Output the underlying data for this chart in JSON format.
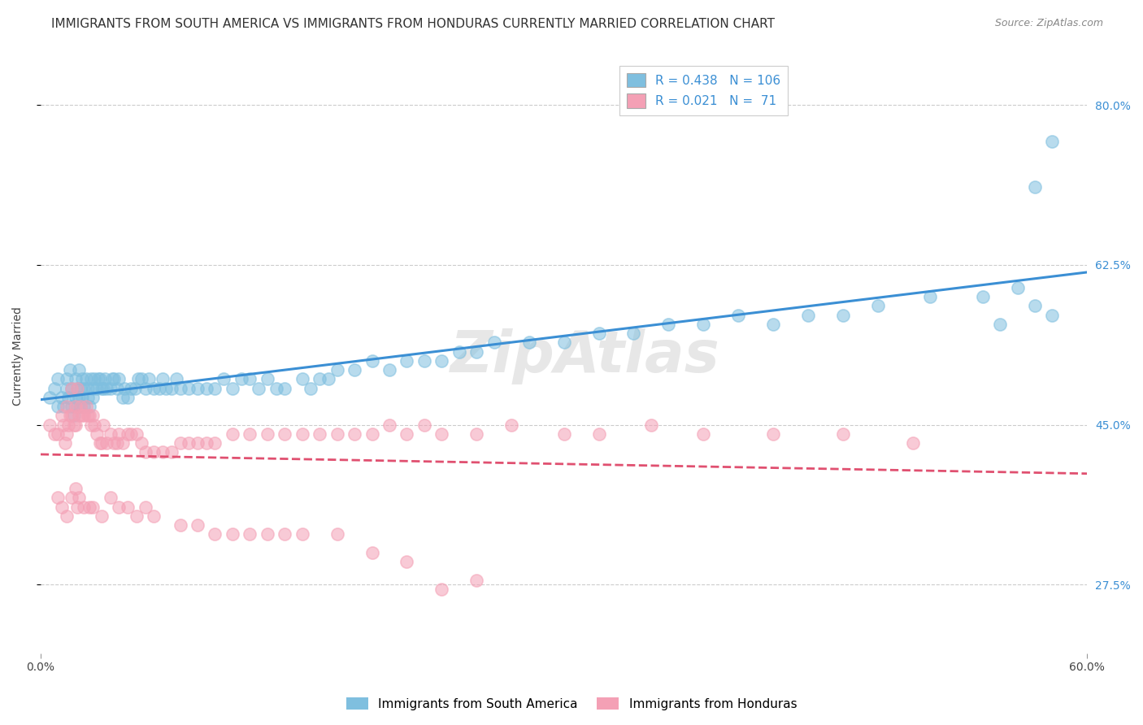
{
  "title": "IMMIGRANTS FROM SOUTH AMERICA VS IMMIGRANTS FROM HONDURAS CURRENTLY MARRIED CORRELATION CHART",
  "source": "Source: ZipAtlas.com",
  "ylabel": "Currently Married",
  "xlim": [
    0.0,
    0.6
  ],
  "ylim": [
    0.2,
    0.85
  ],
  "ytick_labels": [
    "27.5%",
    "45.0%",
    "62.5%",
    "80.0%"
  ],
  "ytick_values": [
    0.275,
    0.45,
    0.625,
    0.8
  ],
  "xtick_labels": [
    "0.0%",
    "60.0%"
  ],
  "r_south_america": 0.438,
  "n_south_america": 106,
  "r_honduras": 0.021,
  "n_honduras": 71,
  "color_south_america": "#7fbfdf",
  "color_honduras": "#f4a0b5",
  "line_color_south_america": "#3b8fd4",
  "line_color_honduras": "#e05070",
  "background_color": "#ffffff",
  "grid_color": "#cccccc",
  "watermark": "ZipAtlas",
  "legend_label_sa": "Immigrants from South America",
  "legend_label_hn": "Immigrants from Honduras",
  "title_fontsize": 11,
  "axis_label_fontsize": 10,
  "tick_fontsize": 10,
  "legend_fontsize": 11,
  "scatter_size": 120,
  "sa_x": [
    0.005,
    0.008,
    0.01,
    0.01,
    0.012,
    0.013,
    0.015,
    0.015,
    0.016,
    0.017,
    0.018,
    0.018,
    0.019,
    0.02,
    0.02,
    0.021,
    0.021,
    0.022,
    0.022,
    0.023,
    0.023,
    0.024,
    0.024,
    0.025,
    0.025,
    0.026,
    0.027,
    0.027,
    0.028,
    0.029,
    0.03,
    0.03,
    0.031,
    0.032,
    0.033,
    0.034,
    0.035,
    0.036,
    0.037,
    0.038,
    0.04,
    0.041,
    0.042,
    0.044,
    0.045,
    0.047,
    0.048,
    0.05,
    0.052,
    0.054,
    0.056,
    0.058,
    0.06,
    0.062,
    0.065,
    0.068,
    0.07,
    0.072,
    0.075,
    0.078,
    0.08,
    0.085,
    0.09,
    0.095,
    0.1,
    0.105,
    0.11,
    0.115,
    0.12,
    0.125,
    0.13,
    0.135,
    0.14,
    0.15,
    0.155,
    0.16,
    0.165,
    0.17,
    0.18,
    0.19,
    0.2,
    0.21,
    0.22,
    0.23,
    0.24,
    0.25,
    0.26,
    0.28,
    0.3,
    0.32,
    0.34,
    0.36,
    0.38,
    0.4,
    0.42,
    0.44,
    0.46,
    0.48,
    0.51,
    0.54,
    0.56,
    0.57,
    0.58,
    0.57,
    0.55,
    0.58
  ],
  "sa_y": [
    0.48,
    0.49,
    0.47,
    0.5,
    0.48,
    0.47,
    0.5,
    0.49,
    0.48,
    0.51,
    0.47,
    0.49,
    0.46,
    0.5,
    0.48,
    0.49,
    0.47,
    0.51,
    0.48,
    0.49,
    0.47,
    0.5,
    0.48,
    0.49,
    0.47,
    0.5,
    0.48,
    0.49,
    0.47,
    0.5,
    0.49,
    0.48,
    0.5,
    0.49,
    0.5,
    0.5,
    0.49,
    0.49,
    0.5,
    0.49,
    0.49,
    0.5,
    0.5,
    0.49,
    0.5,
    0.48,
    0.49,
    0.48,
    0.49,
    0.49,
    0.5,
    0.5,
    0.49,
    0.5,
    0.49,
    0.49,
    0.5,
    0.49,
    0.49,
    0.5,
    0.49,
    0.49,
    0.49,
    0.49,
    0.49,
    0.5,
    0.49,
    0.5,
    0.5,
    0.49,
    0.5,
    0.49,
    0.49,
    0.5,
    0.49,
    0.5,
    0.5,
    0.51,
    0.51,
    0.52,
    0.51,
    0.52,
    0.52,
    0.52,
    0.53,
    0.53,
    0.54,
    0.54,
    0.54,
    0.55,
    0.55,
    0.56,
    0.56,
    0.57,
    0.56,
    0.57,
    0.57,
    0.58,
    0.59,
    0.59,
    0.6,
    0.71,
    0.57,
    0.58,
    0.56,
    0.76
  ],
  "hn_x": [
    0.005,
    0.008,
    0.01,
    0.012,
    0.013,
    0.014,
    0.015,
    0.015,
    0.016,
    0.017,
    0.018,
    0.018,
    0.019,
    0.02,
    0.02,
    0.021,
    0.022,
    0.023,
    0.024,
    0.025,
    0.026,
    0.027,
    0.028,
    0.029,
    0.03,
    0.031,
    0.032,
    0.034,
    0.035,
    0.036,
    0.038,
    0.04,
    0.042,
    0.044,
    0.045,
    0.047,
    0.05,
    0.052,
    0.055,
    0.058,
    0.06,
    0.065,
    0.07,
    0.075,
    0.08,
    0.085,
    0.09,
    0.095,
    0.1,
    0.11,
    0.12,
    0.13,
    0.14,
    0.15,
    0.16,
    0.17,
    0.18,
    0.19,
    0.2,
    0.21,
    0.22,
    0.23,
    0.25,
    0.27,
    0.3,
    0.32,
    0.35,
    0.38,
    0.42,
    0.46,
    0.5
  ],
  "hn_y": [
    0.45,
    0.44,
    0.44,
    0.46,
    0.45,
    0.43,
    0.47,
    0.44,
    0.45,
    0.46,
    0.46,
    0.49,
    0.45,
    0.47,
    0.45,
    0.49,
    0.46,
    0.47,
    0.46,
    0.46,
    0.47,
    0.46,
    0.46,
    0.45,
    0.46,
    0.45,
    0.44,
    0.43,
    0.43,
    0.45,
    0.43,
    0.44,
    0.43,
    0.43,
    0.44,
    0.43,
    0.44,
    0.44,
    0.44,
    0.43,
    0.42,
    0.42,
    0.42,
    0.42,
    0.43,
    0.43,
    0.43,
    0.43,
    0.43,
    0.44,
    0.44,
    0.44,
    0.44,
    0.44,
    0.44,
    0.44,
    0.44,
    0.44,
    0.45,
    0.44,
    0.45,
    0.44,
    0.44,
    0.45,
    0.44,
    0.44,
    0.45,
    0.44,
    0.44,
    0.44,
    0.43
  ],
  "hn_outlier_x": [
    0.01,
    0.012,
    0.015,
    0.018,
    0.02,
    0.021,
    0.022,
    0.025,
    0.028,
    0.03,
    0.035,
    0.04,
    0.045,
    0.05,
    0.055,
    0.06,
    0.065,
    0.08,
    0.09,
    0.1,
    0.11,
    0.12,
    0.13,
    0.14,
    0.15,
    0.17,
    0.19,
    0.21,
    0.23,
    0.25
  ],
  "hn_outlier_y": [
    0.37,
    0.36,
    0.35,
    0.37,
    0.38,
    0.36,
    0.37,
    0.36,
    0.36,
    0.36,
    0.35,
    0.37,
    0.36,
    0.36,
    0.35,
    0.36,
    0.35,
    0.34,
    0.34,
    0.33,
    0.33,
    0.33,
    0.33,
    0.33,
    0.33,
    0.33,
    0.31,
    0.3,
    0.27,
    0.28
  ]
}
